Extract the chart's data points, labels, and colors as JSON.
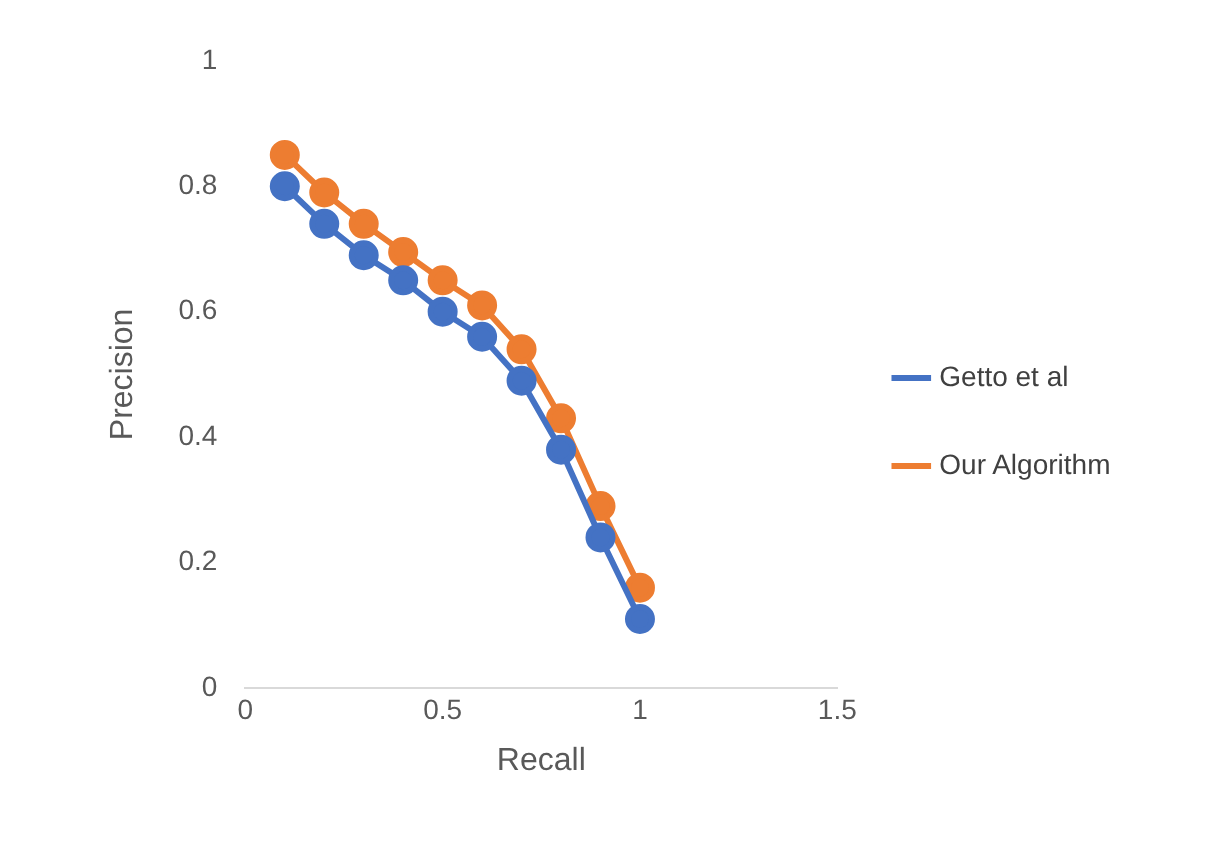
{
  "chart_data": {
    "type": "line",
    "xlabel": "Recall",
    "ylabel": "Precision",
    "xlim": [
      0,
      1.5
    ],
    "xticks": [
      0,
      0.5,
      1,
      1.5
    ],
    "ylim": [
      0,
      1
    ],
    "yticks": [
      0,
      0.2,
      0.4,
      0.6,
      0.8,
      1
    ],
    "grid": false,
    "legend": "right",
    "marker": "circle",
    "line_style": "solid",
    "series": [
      {
        "name": "Getto et al",
        "color": "#4472c4",
        "x": [
          0.1,
          0.2,
          0.3,
          0.4,
          0.5,
          0.6,
          0.7,
          0.8,
          0.9,
          1
        ],
        "values": [
          0.8,
          0.74,
          0.69,
          0.65,
          0.6,
          0.56,
          0.49,
          0.38,
          0.24,
          0.11
        ]
      },
      {
        "name": "Our Algorithm",
        "color": "#ed7d31",
        "x": [
          0.1,
          0.2,
          0.3,
          0.4,
          0.5,
          0.6,
          0.7,
          0.8,
          0.9,
          1
        ],
        "values": [
          0.85,
          0.79,
          0.74,
          0.695,
          0.65,
          0.61,
          0.54,
          0.43,
          0.29,
          0.16
        ]
      }
    ]
  }
}
